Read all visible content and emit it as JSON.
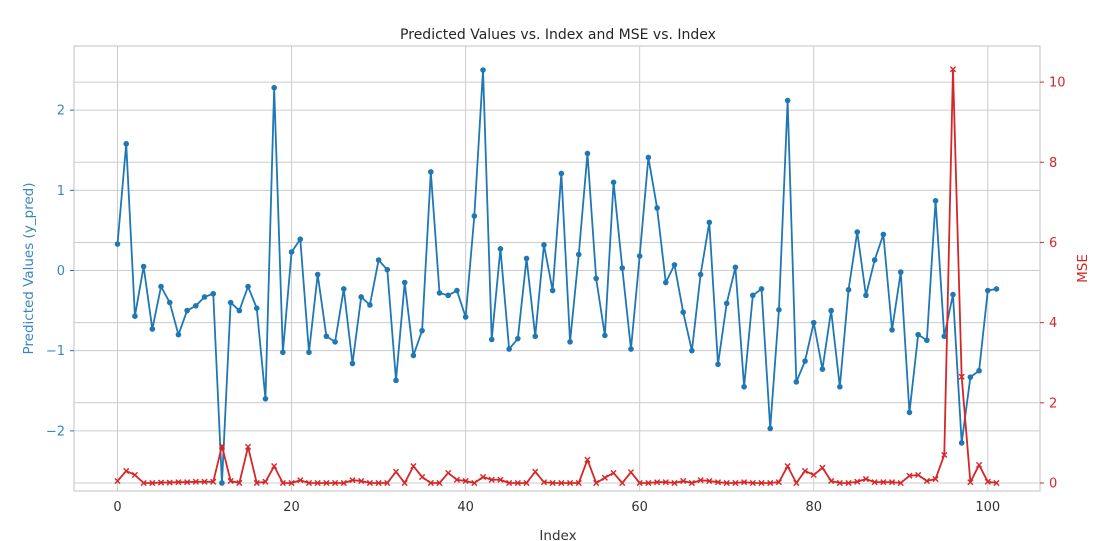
{
  "chart_data": {
    "type": "line",
    "title": "Predicted Values vs. Index and MSE vs. Index",
    "xlabel": "Index",
    "ylabel_left": "Predicted Values (y_pred)",
    "ylabel_right": "MSE",
    "xlim": [
      -5,
      106
    ],
    "ylim_left": [
      -2.75,
      2.8
    ],
    "ylim_right": [
      -0.2,
      10.9
    ],
    "x_ticks": [
      0,
      20,
      40,
      60,
      80,
      100
    ],
    "y_ticks_left": [
      -2,
      -1,
      0,
      1,
      2
    ],
    "y_ticks_right": [
      0,
      2,
      4,
      6,
      8,
      10
    ],
    "grid": true,
    "colors": {
      "left_series": "#1f77b4",
      "right_series": "#d62728",
      "grid": "#cccccc",
      "axes": "#cccccc"
    },
    "series": [
      {
        "axis": "left",
        "marker": "circle",
        "values": [
          0.33,
          1.58,
          -0.57,
          0.05,
          -0.73,
          -0.2,
          -0.4,
          -0.8,
          -0.5,
          -0.44,
          -0.33,
          -0.29,
          -2.65,
          -0.4,
          -0.5,
          -0.2,
          -0.47,
          -1.6,
          2.28,
          -1.02,
          0.23,
          0.39,
          -1.02,
          -0.05,
          -0.82,
          -0.89,
          -0.23,
          -1.16,
          -0.33,
          -0.43,
          0.13,
          0.01,
          -1.37,
          -0.15,
          -1.06,
          -0.75,
          1.23,
          -0.28,
          -0.31,
          -0.25,
          -0.58,
          0.68,
          2.5,
          -0.86,
          0.27,
          -0.98,
          -0.85,
          0.15,
          -0.82,
          0.32,
          -0.25,
          1.21,
          -0.89,
          0.2,
          1.46,
          -0.1,
          -0.81,
          1.1,
          0.03,
          -0.98,
          0.18,
          1.41,
          0.78,
          -0.15,
          0.07,
          -0.52,
          -1.0,
          -0.05,
          0.6,
          -1.17,
          -0.41,
          0.04,
          -1.45,
          -0.31,
          -0.23,
          -1.97,
          -0.49,
          2.12,
          -1.39,
          -1.13,
          -0.65,
          -1.23,
          -0.5,
          -1.45,
          -0.24,
          0.48,
          -0.31,
          0.13,
          0.45,
          -0.74,
          -0.02,
          -1.77,
          -0.8,
          -0.87,
          0.87,
          -0.82,
          -0.3,
          -2.15,
          -1.33,
          -1.25,
          -0.25,
          -0.23
        ]
      },
      {
        "axis": "right",
        "marker": "x",
        "values": [
          0.05,
          0.3,
          0.2,
          0.0,
          0.0,
          0.01,
          0.01,
          0.02,
          0.02,
          0.03,
          0.03,
          0.03,
          0.92,
          0.05,
          0.0,
          0.9,
          0.0,
          0.03,
          0.42,
          0.0,
          0.0,
          0.07,
          0.0,
          0.0,
          0.0,
          0.0,
          0.0,
          0.07,
          0.05,
          0.0,
          0.0,
          0.0,
          0.28,
          0.0,
          0.42,
          0.15,
          0.0,
          0.0,
          0.25,
          0.08,
          0.05,
          0.0,
          0.15,
          0.08,
          0.08,
          0.0,
          0.0,
          0.0,
          0.28,
          0.02,
          0.0,
          0.0,
          0.0,
          0.0,
          0.58,
          0.0,
          0.13,
          0.25,
          0.0,
          0.27,
          0.0,
          0.0,
          0.02,
          0.02,
          0.0,
          0.05,
          0.0,
          0.07,
          0.05,
          0.02,
          0.0,
          0.0,
          0.02,
          0.0,
          0.0,
          0.0,
          0.02,
          0.42,
          0.0,
          0.3,
          0.2,
          0.38,
          0.05,
          0.0,
          0.0,
          0.03,
          0.1,
          0.02,
          0.02,
          0.02,
          0.0,
          0.18,
          0.2,
          0.05,
          0.1,
          0.7,
          10.32,
          2.65,
          0.02,
          0.45,
          0.03,
          0.0
        ]
      }
    ]
  }
}
